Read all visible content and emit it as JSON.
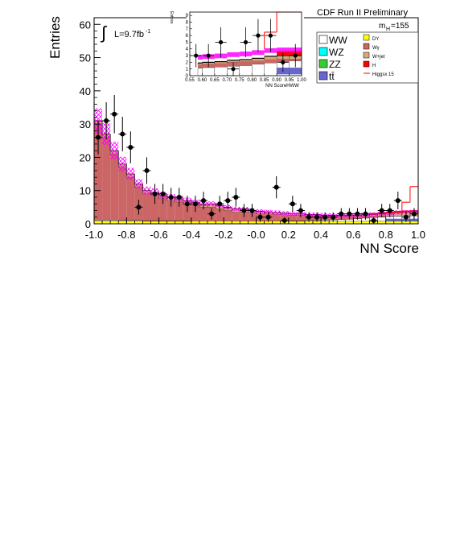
{
  "header": {
    "experiment": "CDF Run II Preliminary"
  },
  "luminosity": {
    "integral_symbol": "∫",
    "label": "L=9.7fb",
    "superscript": "-1"
  },
  "mass_label": {
    "prefix": "m",
    "subscript": "H",
    "value": "=155"
  },
  "chart_data": [
    {
      "type": "histogram",
      "title": "",
      "xlabel": "NN Score",
      "ylabel": "Entries",
      "xlim": [
        -1.0,
        1.0
      ],
      "ylim": [
        0,
        62
      ],
      "xticks": [
        "-1.0",
        "-0.8",
        "-0.6",
        "-0.4",
        "-0.2",
        "-0.0",
        "0.2",
        "0.4",
        "0.6",
        "0.8",
        "1.0"
      ],
      "yticks": [
        "0",
        "10",
        "20",
        "30",
        "40",
        "50",
        "60"
      ],
      "bin_edges_note": "40 bins of width 0.05 from -1.0 to 1.0",
      "bins": 40,
      "stack_totals": [
        31,
        27,
        22,
        18,
        15,
        12,
        10,
        9.5,
        8.5,
        8,
        7.5,
        7,
        6.5,
        6,
        6,
        5.5,
        5,
        4.5,
        4.5,
        4,
        3.8,
        3.6,
        3.4,
        3.2,
        3,
        3,
        2.8,
        2.8,
        2.6,
        2.6,
        2.5,
        2.5,
        2.6,
        2.7,
        2.8,
        3,
        3.2,
        3.4,
        3.5,
        3.6
      ],
      "wjet_tops": [
        30,
        26,
        21,
        17,
        14,
        11,
        9,
        8.5,
        7.5,
        7,
        6.5,
        6,
        5.5,
        5,
        5,
        4.5,
        4,
        3.5,
        3.5,
        3.2,
        3,
        2.9,
        2.8,
        2.7,
        2.6,
        2.6,
        2.5,
        2.5,
        2.4,
        2.4,
        2.3,
        2.3,
        2.3,
        2.3,
        2.3,
        2.3,
        2.3,
        2.3,
        2.3,
        2.3
      ],
      "wgamma_tops": [
        27,
        25,
        20,
        16,
        13,
        10,
        8,
        7.5,
        6.5,
        6,
        5.5,
        5,
        4.6,
        4.2,
        4,
        3.6,
        3.2,
        2.9,
        2.8,
        2.6,
        2.4,
        2.3,
        2.2,
        2.1,
        2,
        2,
        1.9,
        1.9,
        1.8,
        1.8,
        1.7,
        1.7,
        1.6,
        1.6,
        1.5,
        1.5,
        1.4,
        1.4,
        1.3,
        1.3
      ],
      "ww_tops": [
        1.1,
        1.1,
        1.1,
        1.0,
        1.0,
        1.0,
        0.9,
        0.9,
        0.9,
        0.9,
        0.9,
        0.9,
        0.8,
        0.8,
        0.8,
        0.8,
        0.8,
        0.8,
        0.8,
        0.8,
        0.8,
        0.8,
        0.8,
        0.8,
        0.9,
        0.9,
        1.0,
        1.0,
        1.1,
        1.2,
        1.3,
        1.4,
        1.5,
        1.7,
        1.9,
        2.0,
        2.2,
        2.3,
        2.4,
        2.4
      ],
      "dy_level": 0.8,
      "higgs_x15_tail": [
        {
          "x": 0.85,
          "y": 3.5
        },
        {
          "x": 0.9,
          "y": 6.5
        },
        {
          "x": 0.95,
          "y": 11.2
        }
      ],
      "data_points": [
        {
          "x": -0.975,
          "y": 26
        },
        {
          "x": -0.925,
          "y": 31
        },
        {
          "x": -0.875,
          "y": 33
        },
        {
          "x": -0.825,
          "y": 27
        },
        {
          "x": -0.775,
          "y": 23
        },
        {
          "x": -0.725,
          "y": 5
        },
        {
          "x": -0.675,
          "y": 16
        },
        {
          "x": -0.625,
          "y": 9
        },
        {
          "x": -0.575,
          "y": 9
        },
        {
          "x": -0.525,
          "y": 8
        },
        {
          "x": -0.475,
          "y": 8
        },
        {
          "x": -0.425,
          "y": 6
        },
        {
          "x": -0.375,
          "y": 6
        },
        {
          "x": -0.325,
          "y": 7
        },
        {
          "x": -0.275,
          "y": 3
        },
        {
          "x": -0.225,
          "y": 6
        },
        {
          "x": -0.175,
          "y": 7
        },
        {
          "x": -0.125,
          "y": 8
        },
        {
          "x": -0.075,
          "y": 4
        },
        {
          "x": -0.025,
          "y": 4
        },
        {
          "x": 0.025,
          "y": 2
        },
        {
          "x": 0.075,
          "y": 2
        },
        {
          "x": 0.125,
          "y": 11
        },
        {
          "x": 0.175,
          "y": 1
        },
        {
          "x": 0.225,
          "y": 6
        },
        {
          "x": 0.275,
          "y": 4
        },
        {
          "x": 0.325,
          "y": 2
        },
        {
          "x": 0.375,
          "y": 2
        },
        {
          "x": 0.425,
          "y": 2
        },
        {
          "x": 0.475,
          "y": 2
        },
        {
          "x": 0.525,
          "y": 3
        },
        {
          "x": 0.575,
          "y": 3
        },
        {
          "x": 0.625,
          "y": 3
        },
        {
          "x": 0.675,
          "y": 3
        },
        {
          "x": 0.725,
          "y": 1
        },
        {
          "x": 0.775,
          "y": 4
        },
        {
          "x": 0.825,
          "y": 4
        },
        {
          "x": 0.875,
          "y": 7
        },
        {
          "x": 0.925,
          "y": 2
        },
        {
          "x": 0.975,
          "y": 3
        }
      ],
      "legend": [
        {
          "label": "WW",
          "color": "#ffffff"
        },
        {
          "label": "WZ",
          "color": "#00ffff"
        },
        {
          "label": "ZZ",
          "color": "#33cc33"
        },
        {
          "label": "tt̄",
          "color": "#6666cc"
        },
        {
          "label": "DY",
          "color": "#ffff00"
        },
        {
          "label": "Wγ",
          "color": "#cc6666"
        },
        {
          "label": "W+jet",
          "color": "#d9a97a"
        },
        {
          "label": "H",
          "color": "#ff0000"
        },
        {
          "label": "Higgsx 15",
          "color": "#ff0000",
          "style": "line"
        }
      ],
      "colors": {
        "wgamma": "#cc6666",
        "wjet": "#d9a97a",
        "ww": "#ffffff",
        "dy": "#ffff00",
        "ttbar": "#6666cc",
        "higgs": "#ff0000",
        "uncertainty": "#ff00ff"
      }
    },
    {
      "type": "histogram",
      "title": "",
      "xlabel": "NN ScoreHWW",
      "ylabel": "Entries",
      "xlim": [
        0.55,
        1.0
      ],
      "ylim": [
        0,
        9.5
      ],
      "xticks": [
        "0.55",
        "0.60",
        "0.65",
        "0.70",
        "0.75",
        "0.80",
        "0.85",
        "0.90",
        "0.95",
        "1.00"
      ],
      "yticks": [
        "0",
        "1",
        "2",
        "3",
        "4",
        "5",
        "6",
        "7",
        "8",
        "9"
      ],
      "stack_totals": [
        1.9,
        2.0,
        2.1,
        2.3,
        2.4,
        2.6,
        2.9,
        3.0,
        3.0
      ],
      "wjet_tops": [
        1.6,
        1.7,
        1.8,
        2.0,
        2.1,
        2.2,
        2.4,
        2.5,
        2.5
      ],
      "ww_tops": [
        1.1,
        1.2,
        1.3,
        1.4,
        1.5,
        1.7,
        1.9,
        2.1,
        2.2
      ],
      "higgs_x15": [
        2.0,
        2.2,
        2.4,
        2.8,
        3.3,
        4.0,
        6.5,
        9.5,
        9.5
      ],
      "data_points": [
        {
          "x": 0.575,
          "y": 3
        },
        {
          "x": 0.625,
          "y": 3
        },
        {
          "x": 0.675,
          "y": 5
        },
        {
          "x": 0.725,
          "y": 1
        },
        {
          "x": 0.775,
          "y": 5
        },
        {
          "x": 0.825,
          "y": 6
        },
        {
          "x": 0.875,
          "y": 6
        },
        {
          "x": 0.925,
          "y": 2
        },
        {
          "x": 0.975,
          "y": 3
        }
      ]
    }
  ]
}
